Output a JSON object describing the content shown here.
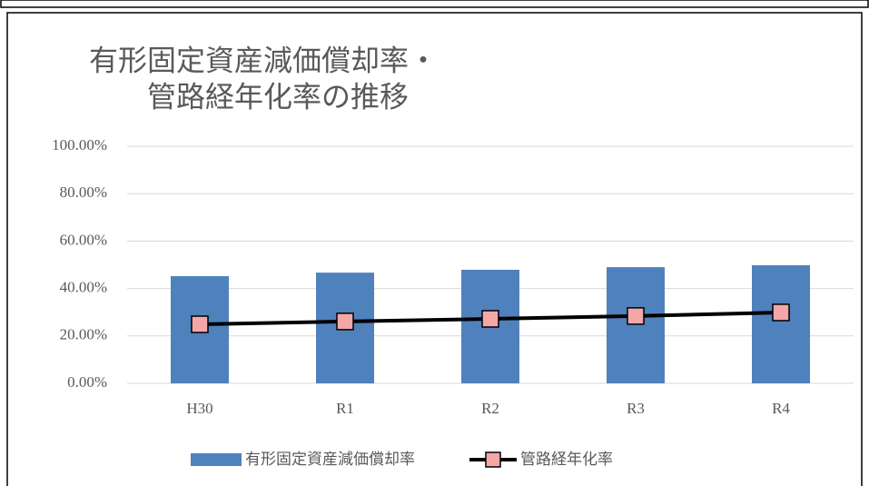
{
  "chart_data": {
    "type": "bar-line",
    "title": [
      "有形固定資産減価償却率・",
      "管路経年化率の推移"
    ],
    "categories": [
      "H30",
      "R1",
      "R2",
      "R3",
      "R4"
    ],
    "series": [
      {
        "name": "有形固定資産減価償却率",
        "type": "bar",
        "color": "#4f81bd",
        "values": [
          45.2,
          46.7,
          47.9,
          49.0,
          49.8
        ]
      },
      {
        "name": "管路経年化率",
        "type": "line",
        "color": "#000000",
        "marker_color": "#f4a7a7",
        "values": [
          24.9,
          26.1,
          27.2,
          28.4,
          29.9
        ]
      }
    ],
    "ylim": [
      0,
      100
    ],
    "yticks": [
      {
        "value": 0,
        "label": "0.00%"
      },
      {
        "value": 20,
        "label": "20.00%"
      },
      {
        "value": 40,
        "label": "40.00%"
      },
      {
        "value": 60,
        "label": "60.00%"
      },
      {
        "value": 80,
        "label": "80.00%"
      },
      {
        "value": 100,
        "label": "100.00%"
      }
    ],
    "grid": true,
    "legend": "bottom"
  }
}
